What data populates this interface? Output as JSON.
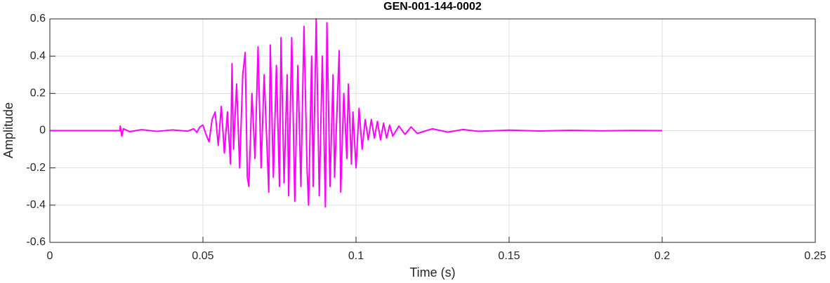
{
  "chart_data": {
    "type": "line",
    "title": "GEN-001-144-0002",
    "xlabel": "Time (s)",
    "ylabel": "Amplitude",
    "x": [
      0,
      0.02,
      0.0229,
      0.023,
      0.0235,
      0.024,
      0.026,
      0.03,
      0.035,
      0.04,
      0.045,
      0.047,
      0.048,
      0.049,
      0.05,
      0.051,
      0.052,
      0.053,
      0.054,
      0.055,
      0.056,
      0.057,
      0.058,
      0.059,
      0.0595,
      0.06,
      0.061,
      0.062,
      0.063,
      0.0638,
      0.0645,
      0.065,
      0.066,
      0.067,
      0.068,
      0.069,
      0.07,
      0.0715,
      0.072,
      0.073,
      0.074,
      0.075,
      0.0755,
      0.0765,
      0.0775,
      0.078,
      0.079,
      0.08,
      0.081,
      0.082,
      0.083,
      0.084,
      0.0845,
      0.0855,
      0.086,
      0.087,
      0.088,
      0.089,
      0.09,
      0.0905,
      0.0915,
      0.0925,
      0.093,
      0.0945,
      0.095,
      0.096,
      0.097,
      0.0975,
      0.0985,
      0.099,
      0.1,
      0.101,
      0.102,
      0.103,
      0.104,
      0.105,
      0.106,
      0.107,
      0.108,
      0.109,
      0.11,
      0.111,
      0.112,
      0.114,
      0.116,
      0.118,
      0.12,
      0.125,
      0.13,
      0.135,
      0.14,
      0.15,
      0.16,
      0.17,
      0.18,
      0.19,
      0.2
    ],
    "series": [
      {
        "name": "Amplitude",
        "color": "#ff00ff",
        "values": [
          0,
          0,
          0,
          0.025,
          -0.03,
          0.01,
          -0.005,
          0.005,
          -0.004,
          0.004,
          -0.003,
          0.01,
          -0.01,
          0.02,
          0.03,
          -0.02,
          -0.06,
          0.06,
          0.1,
          -0.08,
          0.13,
          -0.12,
          0.1,
          -0.18,
          0.36,
          -0.1,
          0.25,
          -0.2,
          0.3,
          0.42,
          -0.25,
          -0.3,
          0.2,
          -0.15,
          0.45,
          -0.2,
          0.3,
          -0.33,
          0.46,
          -0.25,
          0.35,
          -0.3,
          0.5,
          -0.28,
          0.3,
          -0.35,
          0.5,
          -0.38,
          0.35,
          -0.3,
          0.56,
          -0.2,
          -0.4,
          0.4,
          -0.3,
          0.6,
          -0.35,
          0.4,
          -0.41,
          0.58,
          -0.3,
          0.3,
          -0.25,
          0.43,
          -0.33,
          0.2,
          -0.15,
          0.25,
          -0.18,
          0.1,
          -0.2,
          0.12,
          -0.1,
          0.06,
          -0.05,
          0.06,
          -0.04,
          0.05,
          -0.05,
          0.04,
          -0.04,
          0.03,
          -0.03,
          0.025,
          -0.02,
          0.02,
          -0.015,
          0.01,
          -0.008,
          0.006,
          -0.004,
          0.003,
          -0.002,
          0.002,
          -0.001,
          0.001,
          0
        ]
      }
    ],
    "xlim": [
      0,
      0.25
    ],
    "xticks": [
      0,
      0.05,
      0.1,
      0.15,
      0.2,
      0.25
    ],
    "ylim": [
      -0.6,
      0.6
    ],
    "yticks": [
      -0.6,
      -0.4,
      -0.2,
      0,
      0.2,
      0.4,
      0.6
    ],
    "grid": true
  }
}
